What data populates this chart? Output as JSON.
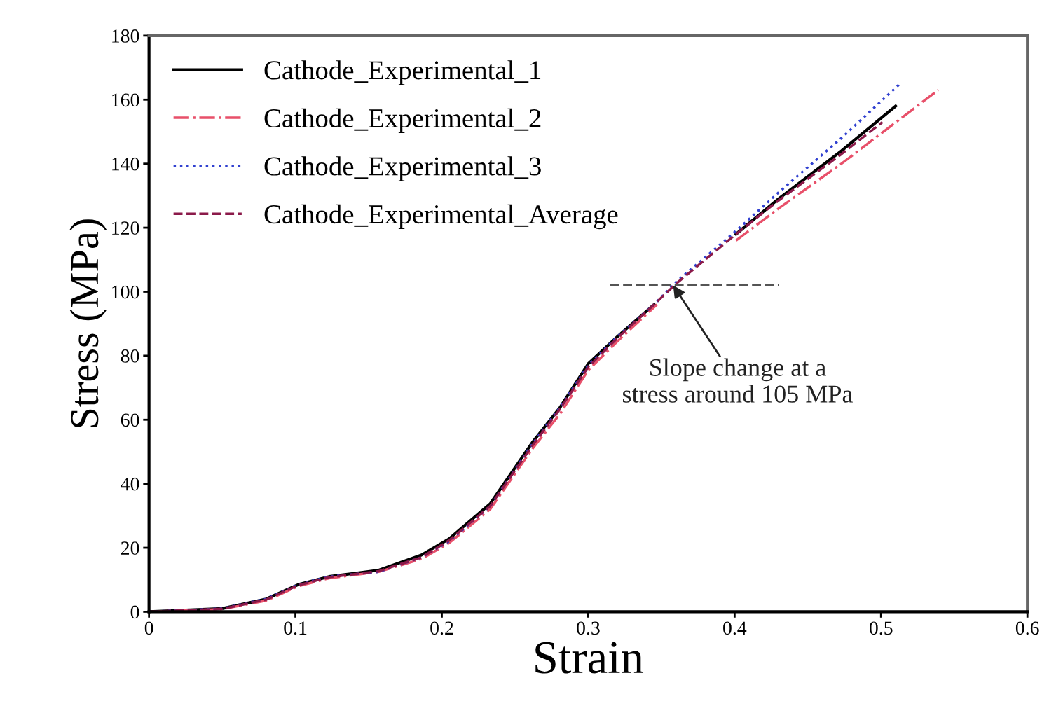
{
  "chart_data": {
    "type": "line",
    "xlabel": "Strain",
    "ylabel": "Stress (MPa)",
    "xlim": [
      0,
      0.6
    ],
    "xticks": [
      0,
      0.1,
      0.2,
      0.3,
      0.4,
      0.5,
      0.6
    ],
    "ylim": [
      0,
      180
    ],
    "yticks": [
      0,
      20,
      40,
      60,
      80,
      100,
      120,
      140,
      160,
      180
    ],
    "grid": false,
    "legend": "top left",
    "marker": "none",
    "series": [
      {
        "name": "Cathode_Experimental_1",
        "color": "#000000",
        "line_style": "solid",
        "x": [
          0,
          0.05,
          0.08,
          0.102,
          0.123,
          0.157,
          0.186,
          0.205,
          0.233,
          0.262,
          0.281,
          0.3,
          0.32,
          0.345,
          0.36,
          0.401,
          0.43,
          0.473,
          0.51
        ],
        "values": [
          0,
          1,
          4,
          8.5,
          11,
          13,
          17.7,
          22.8,
          33.7,
          53,
          64,
          77.5,
          86,
          96,
          null,
          118,
          129,
          144,
          158
        ]
      },
      {
        "name": "Cathode_Experimental_2",
        "color": "#e8506a",
        "line_style": "dashdot",
        "x": [
          0,
          0.05,
          0.08,
          0.102,
          0.123,
          0.157,
          0.186,
          0.205,
          0.233,
          0.262,
          0.281,
          0.3,
          0.32,
          0.347,
          0.36,
          0.401,
          0.43,
          0.473,
          0.539
        ],
        "values": [
          0,
          0.8,
          3.5,
          8,
          10.5,
          12.5,
          16.5,
          21.5,
          32,
          51,
          62,
          75.5,
          84.5,
          96,
          null,
          116,
          126,
          140,
          163
        ]
      },
      {
        "name": "Cathode_Experimental_3",
        "color": "#3040d0",
        "line_style": "dotted",
        "x": [
          0,
          0.05,
          0.08,
          0.102,
          0.123,
          0.157,
          0.186,
          0.205,
          0.233,
          0.262,
          0.281,
          0.3,
          0.32,
          0.345,
          0.36,
          0.401,
          0.43,
          0.473,
          0.513
        ],
        "values": [
          0,
          1,
          4,
          8.5,
          11,
          12.5,
          17,
          22,
          33,
          52.5,
          64,
          77,
          86,
          96,
          103,
          119,
          131,
          148,
          165
        ]
      },
      {
        "name": "Cathode_Experimental_Average",
        "color": "#8b1a4a",
        "line_style": "dashed",
        "x": [
          0,
          0.05,
          0.08,
          0.102,
          0.123,
          0.157,
          0.186,
          0.205,
          0.233,
          0.262,
          0.281,
          0.3,
          0.32,
          0.345,
          0.36,
          0.401,
          0.43,
          0.473,
          0.501
        ],
        "values": [
          0,
          0.9,
          3.8,
          8.3,
          10.8,
          12.7,
          17,
          22.3,
          33,
          52,
          63.5,
          76.5,
          85.5,
          96,
          102.5,
          118,
          128.5,
          143,
          153
        ]
      },
      {
        "color": "#555555",
        "line_style": "dashed",
        "x": [
          0.315,
          0.43
        ],
        "values": [
          102,
          102
        ]
      }
    ],
    "annotations": [
      {
        "text": "Slope change at a\nstress around 105 MPa",
        "x": 0.358,
        "y": 102
      }
    ]
  }
}
